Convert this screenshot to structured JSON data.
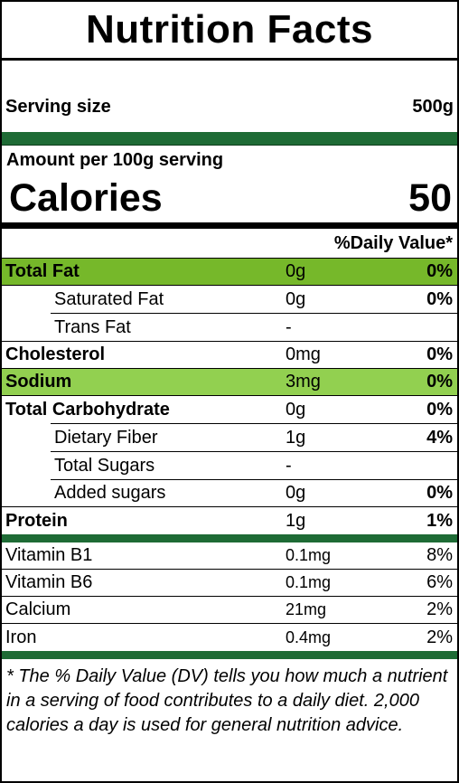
{
  "title": "Nutrition Facts",
  "serving": {
    "label": "Serving size",
    "value": "500g"
  },
  "amount_per": "Amount per 100g serving",
  "calories": {
    "label": "Calories",
    "value": "50"
  },
  "dv_header": "%Daily Value*",
  "nutrients": [
    {
      "name": "Total Fat",
      "amount": "0g",
      "dv": "0%"
    },
    {
      "name": "Saturated Fat",
      "amount": "0g",
      "dv": "0%"
    },
    {
      "name": "Trans Fat",
      "amount": "-",
      "dv": ""
    },
    {
      "name": "Cholesterol",
      "amount": "0mg",
      "dv": "0%"
    },
    {
      "name": "Sodium",
      "amount": "3mg",
      "dv": "0%"
    },
    {
      "name": "Total Carbohydrate",
      "amount": "0g",
      "dv": "0%"
    },
    {
      "name": "Dietary Fiber",
      "amount": "1g",
      "dv": "4%"
    },
    {
      "name": "Total Sugars",
      "amount": "-",
      "dv": ""
    },
    {
      "name": "Added sugars",
      "amount": "0g",
      "dv": "0%"
    },
    {
      "name": "Protein",
      "amount": "1g",
      "dv": "1%"
    }
  ],
  "vitamins": [
    {
      "name": "Vitamin B1",
      "amount": "0.1mg",
      "dv": "8%"
    },
    {
      "name": "Vitamin B6",
      "amount": "0.1mg",
      "dv": "6%"
    },
    {
      "name": "Calcium",
      "amount": "21mg",
      "dv": "2%"
    },
    {
      "name": "Iron",
      "amount": "0.4mg",
      "dv": "2%"
    }
  ],
  "footnote": "* The % Daily Value (DV) tells you how much a nutrient in a serving of food contributes to a daily diet. 2,000 calories a day is used for general nutrition advice.",
  "colors": {
    "dark_green": "#1e6b35",
    "highlight_total_fat": "#76b82a",
    "highlight_sodium": "#92d050"
  }
}
